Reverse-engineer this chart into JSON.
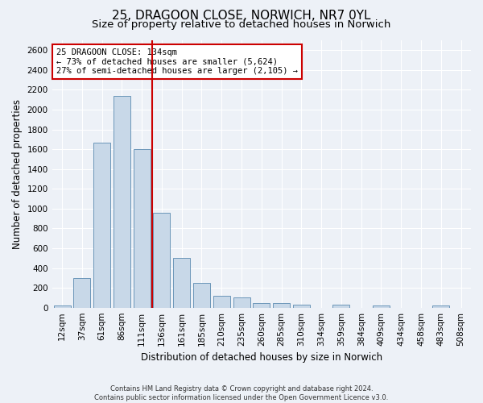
{
  "title": "25, DRAGOON CLOSE, NORWICH, NR7 0YL",
  "subtitle": "Size of property relative to detached houses in Norwich",
  "xlabel": "Distribution of detached houses by size in Norwich",
  "ylabel": "Number of detached properties",
  "categories": [
    "12sqm",
    "37sqm",
    "61sqm",
    "86sqm",
    "111sqm",
    "136sqm",
    "161sqm",
    "185sqm",
    "210sqm",
    "235sqm",
    "260sqm",
    "285sqm",
    "310sqm",
    "334sqm",
    "359sqm",
    "384sqm",
    "409sqm",
    "434sqm",
    "458sqm",
    "483sqm",
    "508sqm"
  ],
  "values": [
    25,
    295,
    1670,
    2140,
    1600,
    960,
    500,
    250,
    120,
    100,
    50,
    50,
    30,
    0,
    30,
    0,
    25,
    0,
    0,
    25,
    0
  ],
  "bar_color": "#c8d8e8",
  "bar_edge_color": "#5a8ab0",
  "vline_x": 4.5,
  "vline_color": "#cc0000",
  "annotation_text": "25 DRAGOON CLOSE: 134sqm\n← 73% of detached houses are smaller (5,624)\n27% of semi-detached houses are larger (2,105) →",
  "annotation_box_color": "#ffffff",
  "annotation_box_edge_color": "#cc0000",
  "ylim": [
    0,
    2700
  ],
  "yticks": [
    0,
    200,
    400,
    600,
    800,
    1000,
    1200,
    1400,
    1600,
    1800,
    2000,
    2200,
    2400,
    2600
  ],
  "footer1": "Contains HM Land Registry data © Crown copyright and database right 2024.",
  "footer2": "Contains public sector information licensed under the Open Government Licence v3.0.",
  "bg_color": "#edf1f7",
  "grid_color": "#ffffff",
  "title_fontsize": 11,
  "subtitle_fontsize": 9.5,
  "label_fontsize": 8.5,
  "tick_fontsize": 7.5,
  "footer_fontsize": 6.0
}
